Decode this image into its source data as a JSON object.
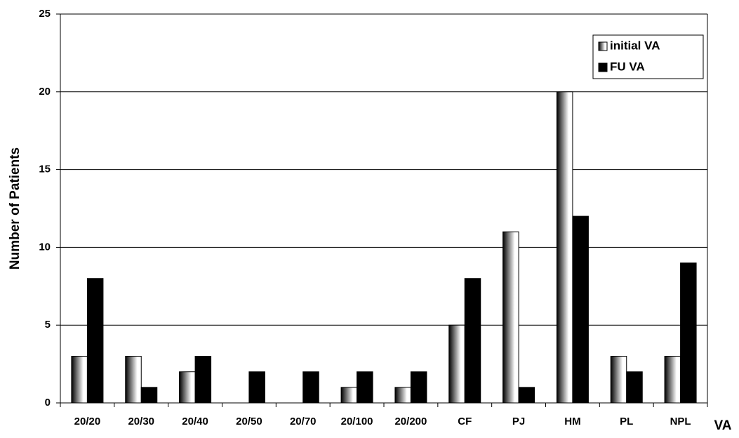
{
  "chart_data": {
    "type": "bar",
    "y_label": "Number of Patients",
    "x_label": "VA",
    "categories": [
      "20/20",
      "20/30",
      "20/40",
      "20/50",
      "20/70",
      "20/100",
      "20/200",
      "CF",
      "PJ",
      "HM",
      "PL",
      "NPL"
    ],
    "series": [
      {
        "name": "initial VA",
        "color": "#ffffff",
        "values": [
          3,
          3,
          2,
          0,
          0,
          1,
          1,
          5,
          11,
          20,
          3,
          3
        ]
      },
      {
        "name": "FU VA",
        "color": "#000000",
        "values": [
          8,
          1,
          3,
          2,
          2,
          2,
          2,
          8,
          1,
          12,
          2,
          9
        ]
      }
    ],
    "ylim": [
      0,
      25
    ],
    "yticks": [
      0,
      5,
      10,
      15,
      20,
      25
    ],
    "grid": true,
    "legend": "top-right"
  }
}
